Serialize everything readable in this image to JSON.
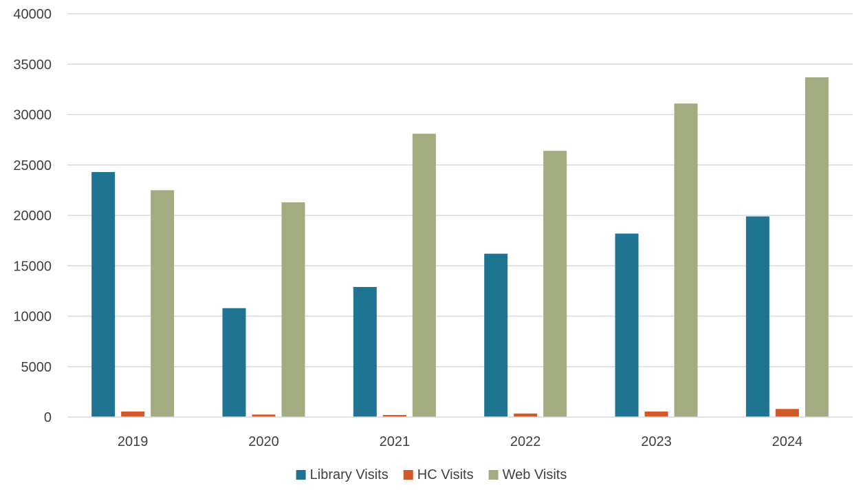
{
  "chart_data": {
    "type": "bar",
    "title": "",
    "xlabel": "",
    "ylabel": "",
    "categories": [
      "2019",
      "2020",
      "2021",
      "2022",
      "2023",
      "2024"
    ],
    "ylim": [
      0,
      40000
    ],
    "yticks": [
      0,
      5000,
      10000,
      15000,
      20000,
      25000,
      30000,
      35000,
      40000
    ],
    "ytick_labels": [
      "0",
      "5000",
      "10000",
      "15000",
      "20000",
      "25000",
      "30000",
      "35000",
      "40000"
    ],
    "grid": true,
    "legend_position": "bottom",
    "series": [
      {
        "name": "Library Visits",
        "color": "#1f7591",
        "values": [
          24300,
          10800,
          12900,
          16200,
          18200,
          19900
        ]
      },
      {
        "name": "HC Visits",
        "color": "#d0592a",
        "values": [
          550,
          250,
          200,
          350,
          550,
          800
        ]
      },
      {
        "name": "Web Visits",
        "color": "#a3ab80",
        "values": [
          22500,
          21300,
          28100,
          26400,
          31100,
          33700
        ]
      }
    ]
  }
}
